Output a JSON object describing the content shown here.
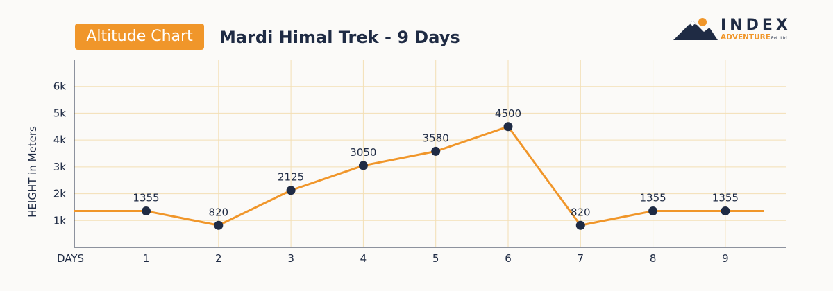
{
  "header": {
    "badge": "Altitude Chart",
    "title": "Mardi Himal Trek - 9 Days"
  },
  "logo": {
    "word": "INDEX",
    "sub": "ADVENTURE",
    "tiny": "Pvt. Ltd."
  },
  "colors": {
    "accent": "#f0962a",
    "text": "#1f2b44",
    "grid": "#f3dfb5",
    "axis": "#1f2b44"
  },
  "chart_data": {
    "type": "line",
    "title": "Mardi Himal Trek - 9 Days",
    "xlabel": "DAYS",
    "ylabel": "HEIGHT in Meters",
    "x": [
      1,
      2,
      3,
      4,
      5,
      6,
      7,
      8,
      9
    ],
    "x_ticks": [
      "1",
      "2",
      "3",
      "4",
      "5",
      "6",
      "7",
      "8",
      "9"
    ],
    "y_ticks": [
      "1k",
      "2k",
      "3k",
      "4k",
      "5k",
      "6k"
    ],
    "y_tick_values": [
      1000,
      2000,
      3000,
      4000,
      5000,
      6000
    ],
    "values": [
      1355,
      820,
      2125,
      3050,
      3580,
      4500,
      820,
      1355,
      1355
    ],
    "labels": [
      "1355",
      "820",
      "2125",
      "3050",
      "3580",
      "4500",
      "820",
      "1355",
      "1355"
    ],
    "ylim": [
      0,
      7000
    ],
    "xlim": [
      0,
      9.55
    ],
    "line_start_value": 1355,
    "line_end_value": 1355,
    "grid": true,
    "legend": "none"
  }
}
